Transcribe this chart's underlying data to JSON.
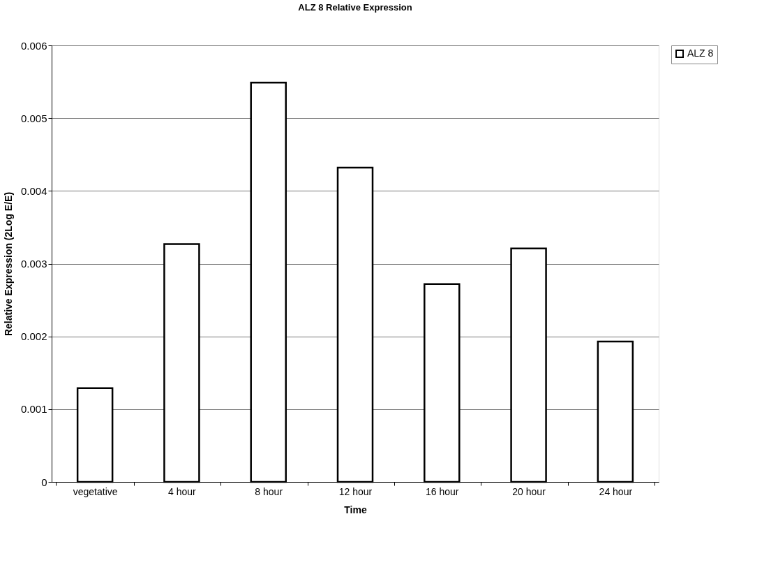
{
  "chart_data": {
    "type": "bar",
    "title": "ALZ 8 Relative Expression",
    "xlabel": "Time",
    "ylabel": "Relative Expression (2Log E/E)",
    "categories": [
      "vegetative",
      "4 hour",
      "8 hour",
      "12 hour",
      "16 hour",
      "20 hour",
      "24 hour"
    ],
    "series": [
      {
        "name": "ALZ 8",
        "color": "#ffffff",
        "values": [
          0.00129,
          0.00327,
          0.00549,
          0.00432,
          0.00272,
          0.00321,
          0.00193
        ]
      }
    ],
    "ylim": [
      0,
      0.006
    ],
    "yticks": [
      0,
      0.001,
      0.002,
      0.003,
      0.004,
      0.005,
      0.006
    ],
    "grid": "y",
    "legend": "right"
  }
}
